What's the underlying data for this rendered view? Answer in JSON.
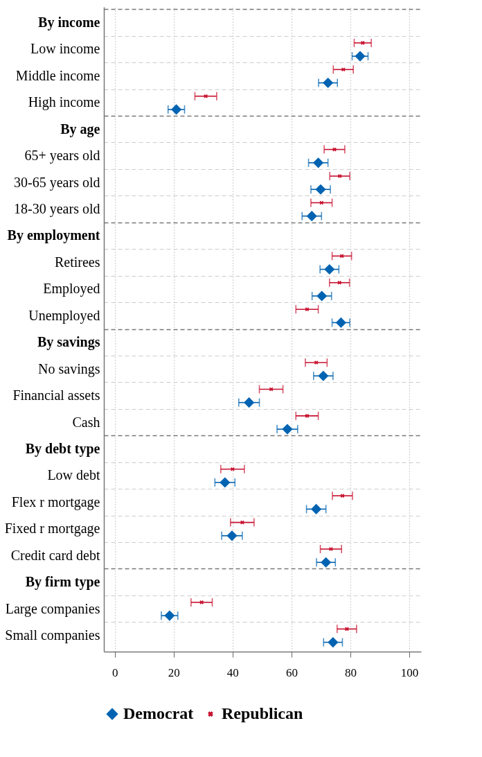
{
  "chart_data": {
    "type": "scatter",
    "orientation": "horizontal",
    "categories": [
      "By income",
      "Low income",
      "Middle income",
      "High income",
      "By age",
      "65+ years old",
      "30-65 years old",
      "18-30 years old",
      "By employment",
      "Retirees",
      "Employed",
      "Unemployed",
      "By savings",
      "No savings",
      "Financial assets",
      "Cash",
      "By debt type",
      "Low debt",
      "Flex r mortgage",
      "Fixed r mortgage",
      "Credit card debt",
      "By firm type",
      "Large companies",
      "Small companies"
    ],
    "series": [
      {
        "name": "Democrat",
        "color": "#0063b1",
        "marker": "diamond",
        "values": [
          null,
          83.3,
          72.4,
          20.9,
          null,
          69.1,
          69.9,
          66.9,
          null,
          72.9,
          70.3,
          76.8,
          null,
          70.8,
          45.6,
          58.6,
          null,
          37.4,
          68.4,
          39.8,
          71.7,
          null,
          18.6,
          74.1
        ],
        "errors": [
          null,
          2.7,
          3.2,
          2.8,
          null,
          3.3,
          3.3,
          3.3,
          null,
          3.2,
          3.3,
          3.0,
          null,
          3.3,
          3.5,
          3.5,
          null,
          3.4,
          3.3,
          3.5,
          3.2,
          null,
          2.8,
          3.2
        ]
      },
      {
        "name": "Republican",
        "color": "#c8102e",
        "marker": "cross",
        "values": [
          null,
          84.2,
          77.6,
          30.9,
          null,
          74.6,
          76.4,
          70.2,
          null,
          77.1,
          76.3,
          65.3,
          null,
          68.4,
          53.1,
          65.3,
          null,
          40.0,
          77.3,
          43.3,
          73.4,
          null,
          29.5,
          78.8
        ],
        "errors": [
          null,
          2.9,
          3.4,
          3.7,
          null,
          3.5,
          3.4,
          3.6,
          null,
          3.3,
          3.4,
          3.8,
          null,
          3.7,
          4.0,
          3.8,
          null,
          4.0,
          3.4,
          4.0,
          3.6,
          null,
          3.6,
          3.3
        ]
      }
    ],
    "xlim": [
      -3.7,
      104
    ],
    "xticks": [
      0,
      20,
      40,
      60,
      80,
      100
    ],
    "grid": true,
    "legend": "bottom"
  }
}
